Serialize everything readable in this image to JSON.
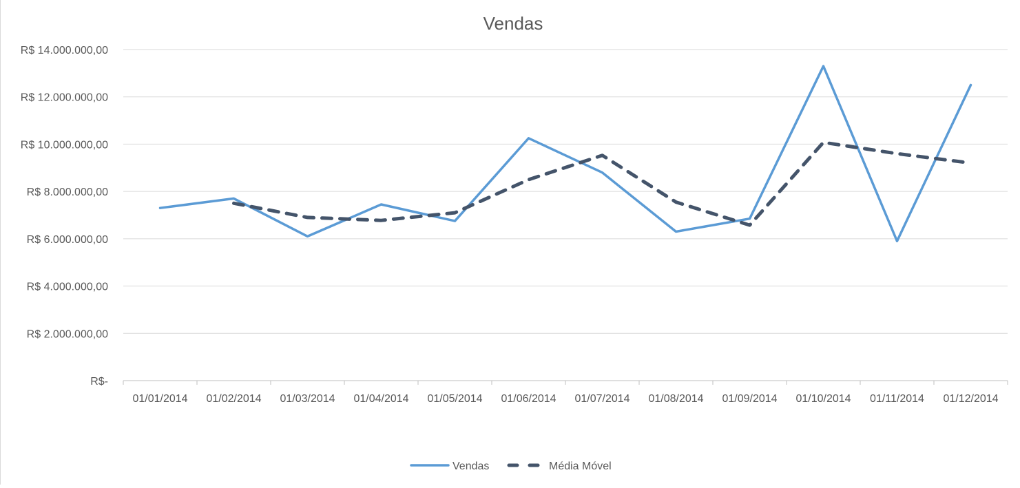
{
  "chart_data": {
    "type": "line",
    "title": "Vendas",
    "categories": [
      "01/01/2014",
      "01/02/2014",
      "01/03/2014",
      "01/04/2014",
      "01/05/2014",
      "01/06/2014",
      "01/07/2014",
      "01/08/2014",
      "01/09/2014",
      "01/10/2014",
      "01/11/2014",
      "01/12/2014"
    ],
    "yticks": [
      0,
      2000000,
      4000000,
      6000000,
      8000000,
      10000000,
      12000000,
      14000000
    ],
    "ytick_labels": [
      "R$-",
      "R$ 2.000.000,00",
      "R$ 4.000.000,00",
      "R$ 6.000.000,00",
      "R$ 8.000.000,00",
      "R$ 10.000.000,00",
      "R$ 12.000.000,00",
      "R$ 14.000.000,00"
    ],
    "ylim": [
      0,
      14000000
    ],
    "grid": true,
    "legend_position": "bottom",
    "series": [
      {
        "name": "Vendas",
        "color": "#5b9bd5",
        "style": "solid",
        "values": [
          7300000,
          7700000,
          6100000,
          7450000,
          6750000,
          10250000,
          8800000,
          6300000,
          6850000,
          13300000,
          5900000,
          12500000
        ]
      },
      {
        "name": "Média Móvel",
        "color": "#44546a",
        "style": "dashed",
        "values": [
          null,
          7500000,
          6900000,
          6775000,
          7100000,
          8500000,
          9525000,
          7550000,
          6575000,
          10075000,
          9600000,
          9200000
        ]
      }
    ]
  }
}
